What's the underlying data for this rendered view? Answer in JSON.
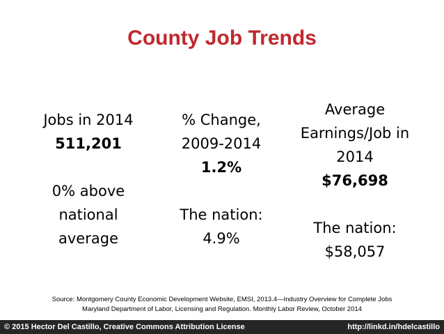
{
  "title": "County Job Trends",
  "columns": [
    {
      "label_lines": [
        "Jobs in 2014"
      ],
      "value": "511,201",
      "note_lines": [
        "0% above",
        "national",
        "average"
      ]
    },
    {
      "label_lines": [
        "% Change,",
        "2009-2014"
      ],
      "value": "1.2%",
      "note_lines": [
        "The nation:",
        "4.9%"
      ]
    },
    {
      "label_lines": [
        "Average",
        "Earnings/Job in",
        "2014"
      ],
      "value": "$76,698",
      "note_lines": [
        "The nation:",
        "$58,057"
      ]
    }
  ],
  "source_lines": [
    "Source: Montgomery County Economic Development Website, EMSI, 2013.4—Industry Overview for Complete Jobs",
    "Maryland Department of Labor, Licensing and Regulation. Monthly Labor Review, October 2014"
  ],
  "footer": {
    "left": "© 2015 Hector Del Castillo, Creative Commons Attribution License",
    "right": "http://linkd.in/hdelcastillo"
  }
}
